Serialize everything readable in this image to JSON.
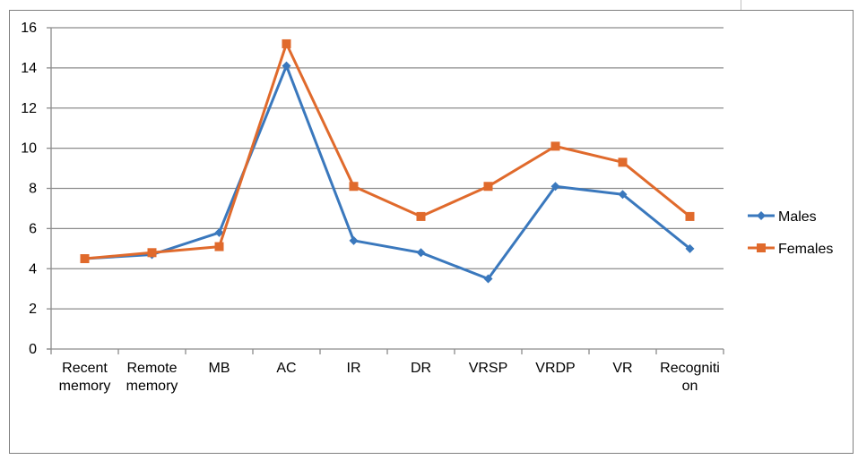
{
  "chart_data": {
    "type": "line",
    "categories": [
      [
        "Recent",
        "memory"
      ],
      [
        "Remote",
        "memory"
      ],
      [
        "MB"
      ],
      [
        "AC"
      ],
      [
        "IR"
      ],
      [
        "DR"
      ],
      [
        "VRSP"
      ],
      [
        "VRDP"
      ],
      [
        "VR"
      ],
      [
        "Recogniti",
        "on"
      ]
    ],
    "series": [
      {
        "name": "Males",
        "color": "#3a78bd",
        "marker": "diamond",
        "values": [
          4.5,
          4.7,
          5.8,
          14.1,
          5.4,
          4.8,
          3.5,
          8.1,
          7.7,
          5.0
        ]
      },
      {
        "name": "Females",
        "color": "#e06a2c",
        "marker": "square",
        "values": [
          4.5,
          4.8,
          5.1,
          15.2,
          8.1,
          6.6,
          8.1,
          10.1,
          9.3,
          6.6
        ]
      }
    ],
    "ylim": [
      0,
      16
    ],
    "yticks": [
      "0",
      "2",
      "4",
      "6",
      "8",
      "10",
      "12",
      "14",
      "16"
    ],
    "grid": true,
    "legend_position": "right",
    "title": "",
    "xlabel": "",
    "ylabel": ""
  }
}
